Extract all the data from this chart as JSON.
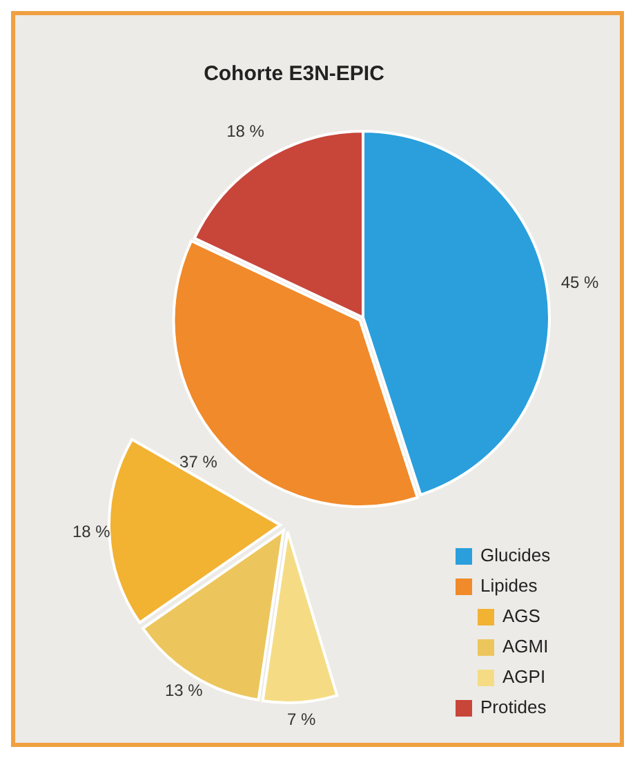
{
  "chart_data": [
    {
      "type": "pie",
      "title": "Cohorte E3N-EPIC",
      "categories": [
        "Glucides",
        "Lipides",
        "Protides"
      ],
      "values": [
        45,
        37,
        18
      ],
      "colors": [
        "#2a9fdc",
        "#f08a2a",
        "#c8453a"
      ],
      "value_labels": [
        "45 %",
        "37 %",
        "18 %"
      ],
      "legend": "bottom right"
    },
    {
      "type": "pie",
      "categories": [
        "AGS",
        "AGMI",
        "AGPI"
      ],
      "values": [
        18,
        13,
        7
      ],
      "colors": [
        "#f2b232",
        "#ecc65c",
        "#f5dc84"
      ],
      "value_labels": [
        "18 %",
        "13 %",
        "7 %"
      ],
      "legend": "bottom right"
    }
  ]
}
